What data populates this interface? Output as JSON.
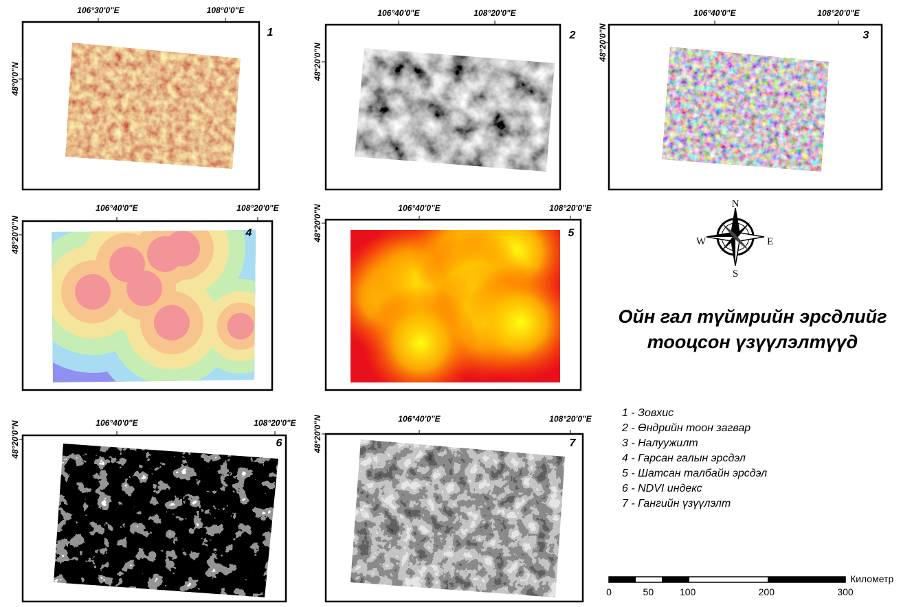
{
  "panels": [
    {
      "number": "1",
      "x_labels": [
        "106°30'0\"E",
        "108°0'0\"E"
      ],
      "y_label": "48°0'0\"N"
    },
    {
      "number": "2",
      "x_labels": [
        "106°40'0\"E",
        "108°20'0\"E"
      ],
      "y_label": "48°20'0\"N"
    },
    {
      "number": "3",
      "x_labels": [
        "106°40'0\"E",
        "108°20'0\"E"
      ],
      "y_label": "48°20'0\"N"
    },
    {
      "number": "4",
      "x_labels": [
        "106°40'0\"E",
        "108°20'0\"E"
      ],
      "y_label": "48°20'0\"N"
    },
    {
      "number": "5",
      "x_labels": [
        "106°40'0\"E",
        "108°20'0\"E"
      ],
      "y_label": "48°20'0\"N"
    },
    {
      "number": "6",
      "x_labels": [
        "106°40'0\"E",
        "108°20'0\"E"
      ],
      "y_label": "48°20'0\"N"
    },
    {
      "number": "7",
      "x_labels": [
        "106°40'0\"E",
        "108°20'0\"E"
      ],
      "y_label": "48°20'0\"N"
    }
  ],
  "compass": {
    "n": "N",
    "s": "S",
    "e": "E",
    "w": "W"
  },
  "title": [
    "Ойн гал түймрийн эрсдлийг",
    "тооцсон үзүүлэлтүүд"
  ],
  "legend": [
    "1 - Зовхис",
    "2 - Өндрийн тоон загвар",
    "3 - Налуужилт",
    "4 - Гарсан галын эрсдэл",
    "5 - Шатсан талбайн эрсдэл",
    "6 - NDVI индекс",
    "7 - Гангийн үзүүлэлт"
  ],
  "scale_bar": {
    "ticks": [
      0,
      50,
      100,
      200,
      300
    ],
    "unit": "Километр"
  }
}
